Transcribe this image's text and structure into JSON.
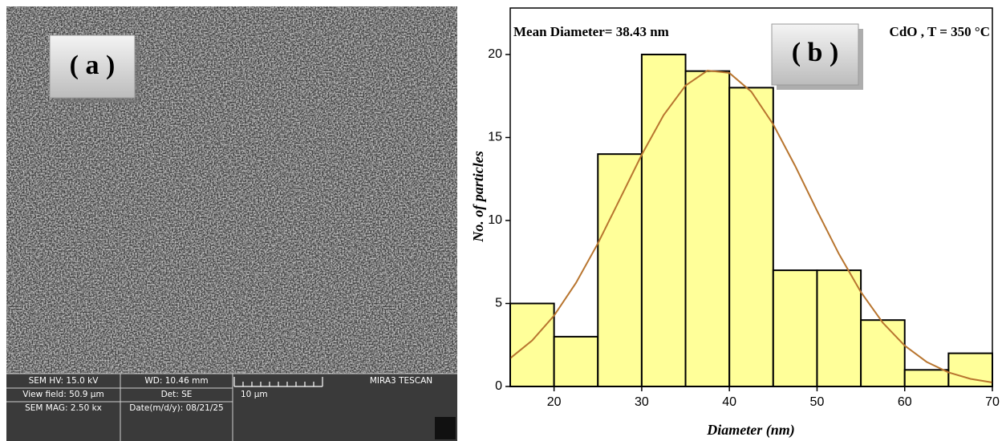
{
  "sem_panel": {
    "label": "( a )",
    "info_bar": [
      [
        "SEM HV: 15.0 kV",
        "WD: 10.46 mm",
        "MIRA3 TESCAN"
      ],
      [
        "View field: 50.9 μm",
        "Det: SE",
        "10 μm"
      ],
      [
        "SEM MAG: 2.50 kx",
        "Date(m/d/y): 08/21/25"
      ]
    ]
  },
  "chart_data": {
    "type": "histogram",
    "panel_label": "( b )",
    "annotations": [
      "Mean Diameter= 38.43 nm",
      "CdO , T = 350 °C"
    ],
    "xlabel": "Diameter (nm)",
    "ylabel": "No. of particles",
    "bins": [
      15,
      20,
      25,
      30,
      35,
      40,
      45,
      50,
      55,
      60,
      65,
      70
    ],
    "values": [
      5,
      3,
      14,
      20,
      19,
      18,
      7,
      7,
      4,
      1,
      2
    ],
    "color": "#ffff99",
    "edgecolor": "#000000",
    "xlim": [
      15,
      70
    ],
    "xticks": [
      20,
      30,
      40,
      50,
      60,
      70
    ],
    "ylim": [
      0,
      22.8
    ],
    "yticks": [
      0,
      5,
      10,
      15,
      20
    ],
    "fit": {
      "color": "#b8752f",
      "x": [
        15,
        17.5,
        20,
        22.5,
        25,
        27.5,
        30,
        32.5,
        35,
        37.5,
        40,
        42.5,
        45,
        47.5,
        50,
        52.5,
        55,
        57.5,
        60,
        62.5,
        65,
        67.5,
        70
      ],
      "y": [
        1.7,
        2.77,
        4.27,
        6.24,
        8.62,
        11.28,
        13.96,
        16.35,
        18.13,
        19.03,
        18.89,
        17.76,
        15.79,
        13.29,
        10.59,
        7.98,
        5.69,
        3.84,
        2.46,
        1.48,
        0.85,
        0.46,
        0.24
      ]
    }
  }
}
